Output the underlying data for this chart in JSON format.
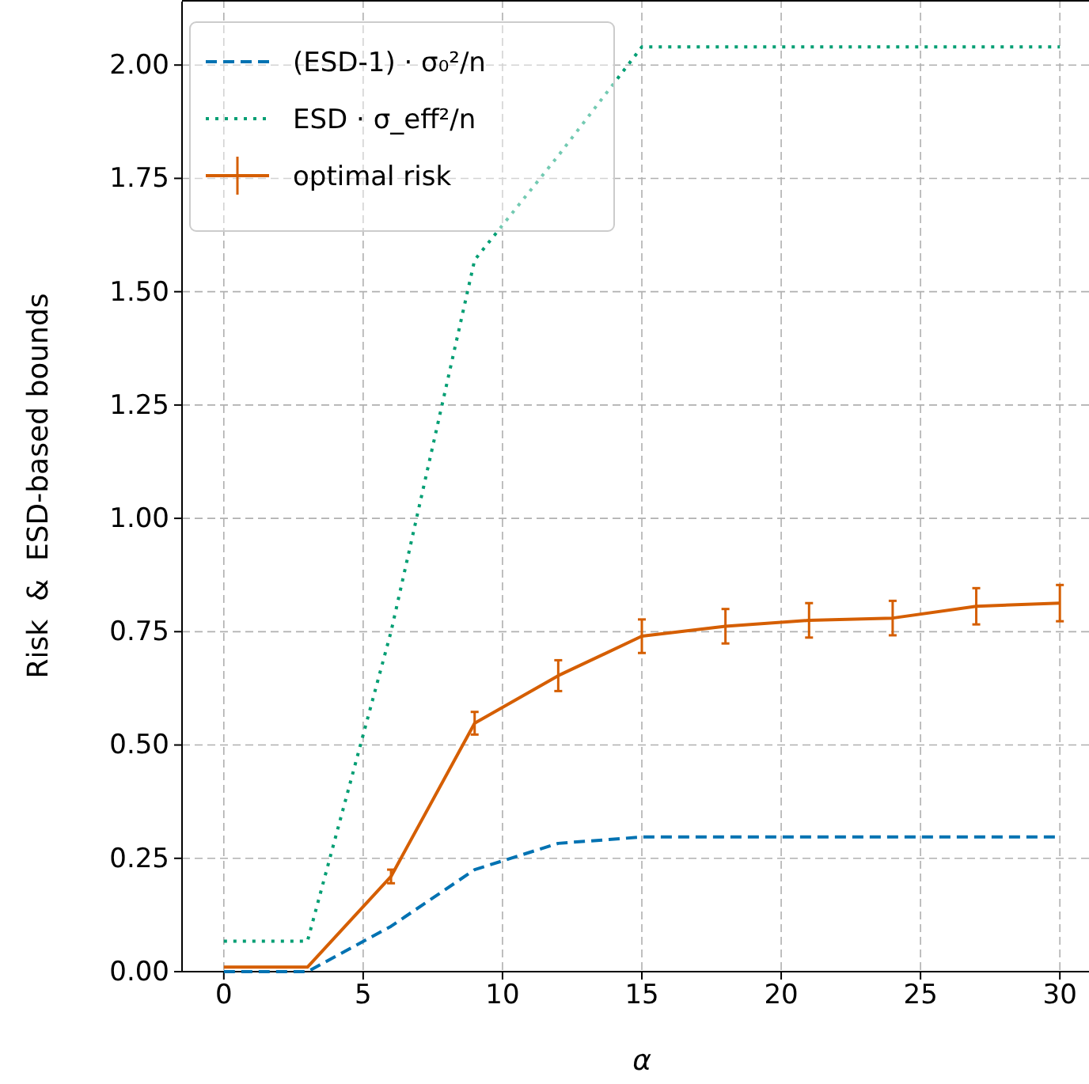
{
  "chart_data": {
    "type": "line",
    "xlabel": "α",
    "ylabel": "Risk  &  ESD-based bounds",
    "x": [
      0,
      3,
      6,
      9,
      12,
      15,
      18,
      21,
      24,
      27,
      30
    ],
    "series": [
      {
        "name": "(ESD-1) · σ₀²/n",
        "color": "#0072b2",
        "line_style": "dashed",
        "values": [
          0,
          0,
          0.1,
          0.225,
          0.283,
          0.297,
          0.297,
          0.297,
          0.297,
          0.297,
          0.297
        ]
      },
      {
        "name": "ESD · σ_eff²/n",
        "color": "#009e73",
        "line_style": "dotted",
        "values": [
          0.067,
          0.067,
          0.75,
          1.57,
          1.8,
          2.04,
          2.04,
          2.04,
          2.04,
          2.04,
          2.04
        ]
      },
      {
        "name": "optimal risk",
        "color": "#d55e00",
        "line_style": "solid",
        "values": [
          0.01,
          0.01,
          0.21,
          0.548,
          0.653,
          0.74,
          0.762,
          0.775,
          0.78,
          0.806,
          0.813
        ],
        "errors": [
          null,
          null,
          0.015,
          0.025,
          0.034,
          0.037,
          0.038,
          0.038,
          0.038,
          0.04,
          0.04
        ]
      }
    ],
    "xlim": [
      -1.5,
      31.5
    ],
    "xticks": [
      0,
      5,
      10,
      15,
      20,
      25,
      30
    ],
    "ylim": [
      0,
      2.14
    ],
    "yticks": [
      {
        "value": 0,
        "label": "0.00"
      },
      {
        "value": 0.25,
        "label": "0.25"
      },
      {
        "value": 0.5,
        "label": "0.50"
      },
      {
        "value": 0.75,
        "label": "0.75"
      },
      {
        "value": 1,
        "label": "1.00"
      },
      {
        "value": 1.25,
        "label": "1.25"
      },
      {
        "value": 1.5,
        "label": "1.50"
      },
      {
        "value": 1.75,
        "label": "1.75"
      },
      {
        "value": 2,
        "label": "2.00"
      }
    ],
    "grid": true,
    "legend": "top left",
    "marker": "none"
  }
}
